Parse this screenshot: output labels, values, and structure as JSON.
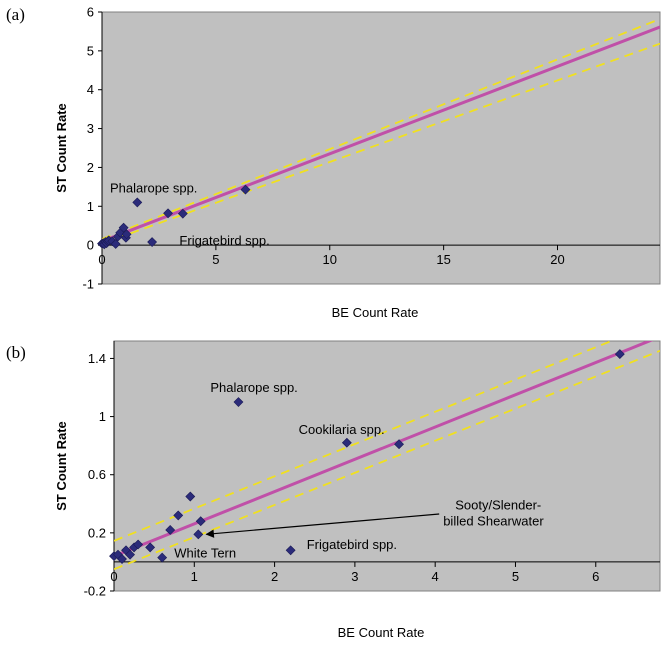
{
  "chart_data": [
    {
      "panel": "(a)",
      "type": "scatter",
      "xlabel": "BE Count Rate",
      "ylabel": "ST Count Rate",
      "xlim": [
        0,
        24.5
      ],
      "ylim": [
        -1,
        6
      ],
      "x_ticks": [
        0,
        5,
        10,
        15,
        20
      ],
      "y_ticks": [
        -1,
        0,
        1,
        2,
        3,
        4,
        5,
        6
      ],
      "grid": false,
      "colors": {
        "plot_bg": "#c0c0c0",
        "points": "#2b2b7a",
        "fit": "#c050a8",
        "ci": "#f0e020"
      },
      "fit": {
        "intercept": 0.1,
        "slope": 0.225
      },
      "ci": {
        "upper": {
          "intercept": 0.16,
          "slope": 0.231
        },
        "lower": {
          "intercept": 0.04,
          "slope": 0.21
        }
      },
      "points": [
        {
          "x": 0.0,
          "y": 0.04
        },
        {
          "x": 0.05,
          "y": 0.05
        },
        {
          "x": 0.1,
          "y": 0.02
        },
        {
          "x": 0.15,
          "y": 0.08
        },
        {
          "x": 0.2,
          "y": 0.05
        },
        {
          "x": 0.25,
          "y": 0.1
        },
        {
          "x": 0.3,
          "y": 0.12
        },
        {
          "x": 0.45,
          "y": 0.1
        },
        {
          "x": 0.6,
          "y": 0.03
        },
        {
          "x": 0.7,
          "y": 0.22
        },
        {
          "x": 0.8,
          "y": 0.32
        },
        {
          "x": 0.95,
          "y": 0.45
        },
        {
          "x": 1.05,
          "y": 0.19
        },
        {
          "x": 1.08,
          "y": 0.28
        },
        {
          "x": 1.55,
          "y": 1.1
        },
        {
          "x": 2.2,
          "y": 0.08
        },
        {
          "x": 2.9,
          "y": 0.82
        },
        {
          "x": 3.55,
          "y": 0.81
        },
        {
          "x": 6.3,
          "y": 1.43
        }
      ],
      "annotations": [
        {
          "text": "Phalarope spp.",
          "x": 0.35,
          "y": 1.35
        },
        {
          "text": "Frigatebird spp.",
          "x": 3.4,
          "y": 0.0
        }
      ]
    },
    {
      "panel": "(b)",
      "type": "scatter",
      "xlabel": "BE Count Rate",
      "ylabel": "ST Count Rate",
      "xlim": [
        0,
        6.8
      ],
      "ylim": [
        -0.2,
        1.52
      ],
      "x_ticks": [
        0,
        1,
        2,
        3,
        4,
        5,
        6
      ],
      "y_ticks": [
        -0.2,
        0.2,
        0.6,
        1,
        1.4
      ],
      "grid": false,
      "colors": {
        "plot_bg": "#c0c0c0",
        "points": "#2b2b7a",
        "fit": "#c050a8",
        "ci": "#f0e020"
      },
      "fit": {
        "intercept": 0.04,
        "slope": 0.222
      },
      "ci": {
        "upper": {
          "intercept": 0.145,
          "slope": 0.222
        },
        "lower": {
          "intercept": -0.05,
          "slope": 0.221
        }
      },
      "points": [
        {
          "x": 0.0,
          "y": 0.04
        },
        {
          "x": 0.05,
          "y": 0.05
        },
        {
          "x": 0.1,
          "y": 0.02
        },
        {
          "x": 0.15,
          "y": 0.08
        },
        {
          "x": 0.2,
          "y": 0.05
        },
        {
          "x": 0.25,
          "y": 0.1
        },
        {
          "x": 0.3,
          "y": 0.12
        },
        {
          "x": 0.45,
          "y": 0.1
        },
        {
          "x": 0.6,
          "y": 0.03
        },
        {
          "x": 0.7,
          "y": 0.22
        },
        {
          "x": 0.8,
          "y": 0.32
        },
        {
          "x": 0.95,
          "y": 0.45
        },
        {
          "x": 1.05,
          "y": 0.19
        },
        {
          "x": 1.08,
          "y": 0.28
        },
        {
          "x": 1.55,
          "y": 1.1
        },
        {
          "x": 2.2,
          "y": 0.08
        },
        {
          "x": 2.9,
          "y": 0.82
        },
        {
          "x": 3.55,
          "y": 0.81
        },
        {
          "x": 6.3,
          "y": 1.43
        }
      ],
      "annotations": [
        {
          "text": "Phalarope spp.",
          "x": 1.2,
          "y": 1.17
        },
        {
          "text": "Cookilaria spp.",
          "x": 2.3,
          "y": 0.88
        },
        {
          "text": "Sooty/Slender-",
          "x": 4.25,
          "y": 0.36
        },
        {
          "text": "billed Shearwater",
          "x": 4.1,
          "y": 0.25
        },
        {
          "text": "Frigatebird spp.",
          "x": 2.4,
          "y": 0.09
        },
        {
          "text": "White Tern",
          "x": 0.75,
          "y": 0.03
        }
      ],
      "arrow": {
        "from": {
          "x": 4.05,
          "y": 0.33
        },
        "to": {
          "x": 1.15,
          "y": 0.19
        }
      }
    }
  ]
}
